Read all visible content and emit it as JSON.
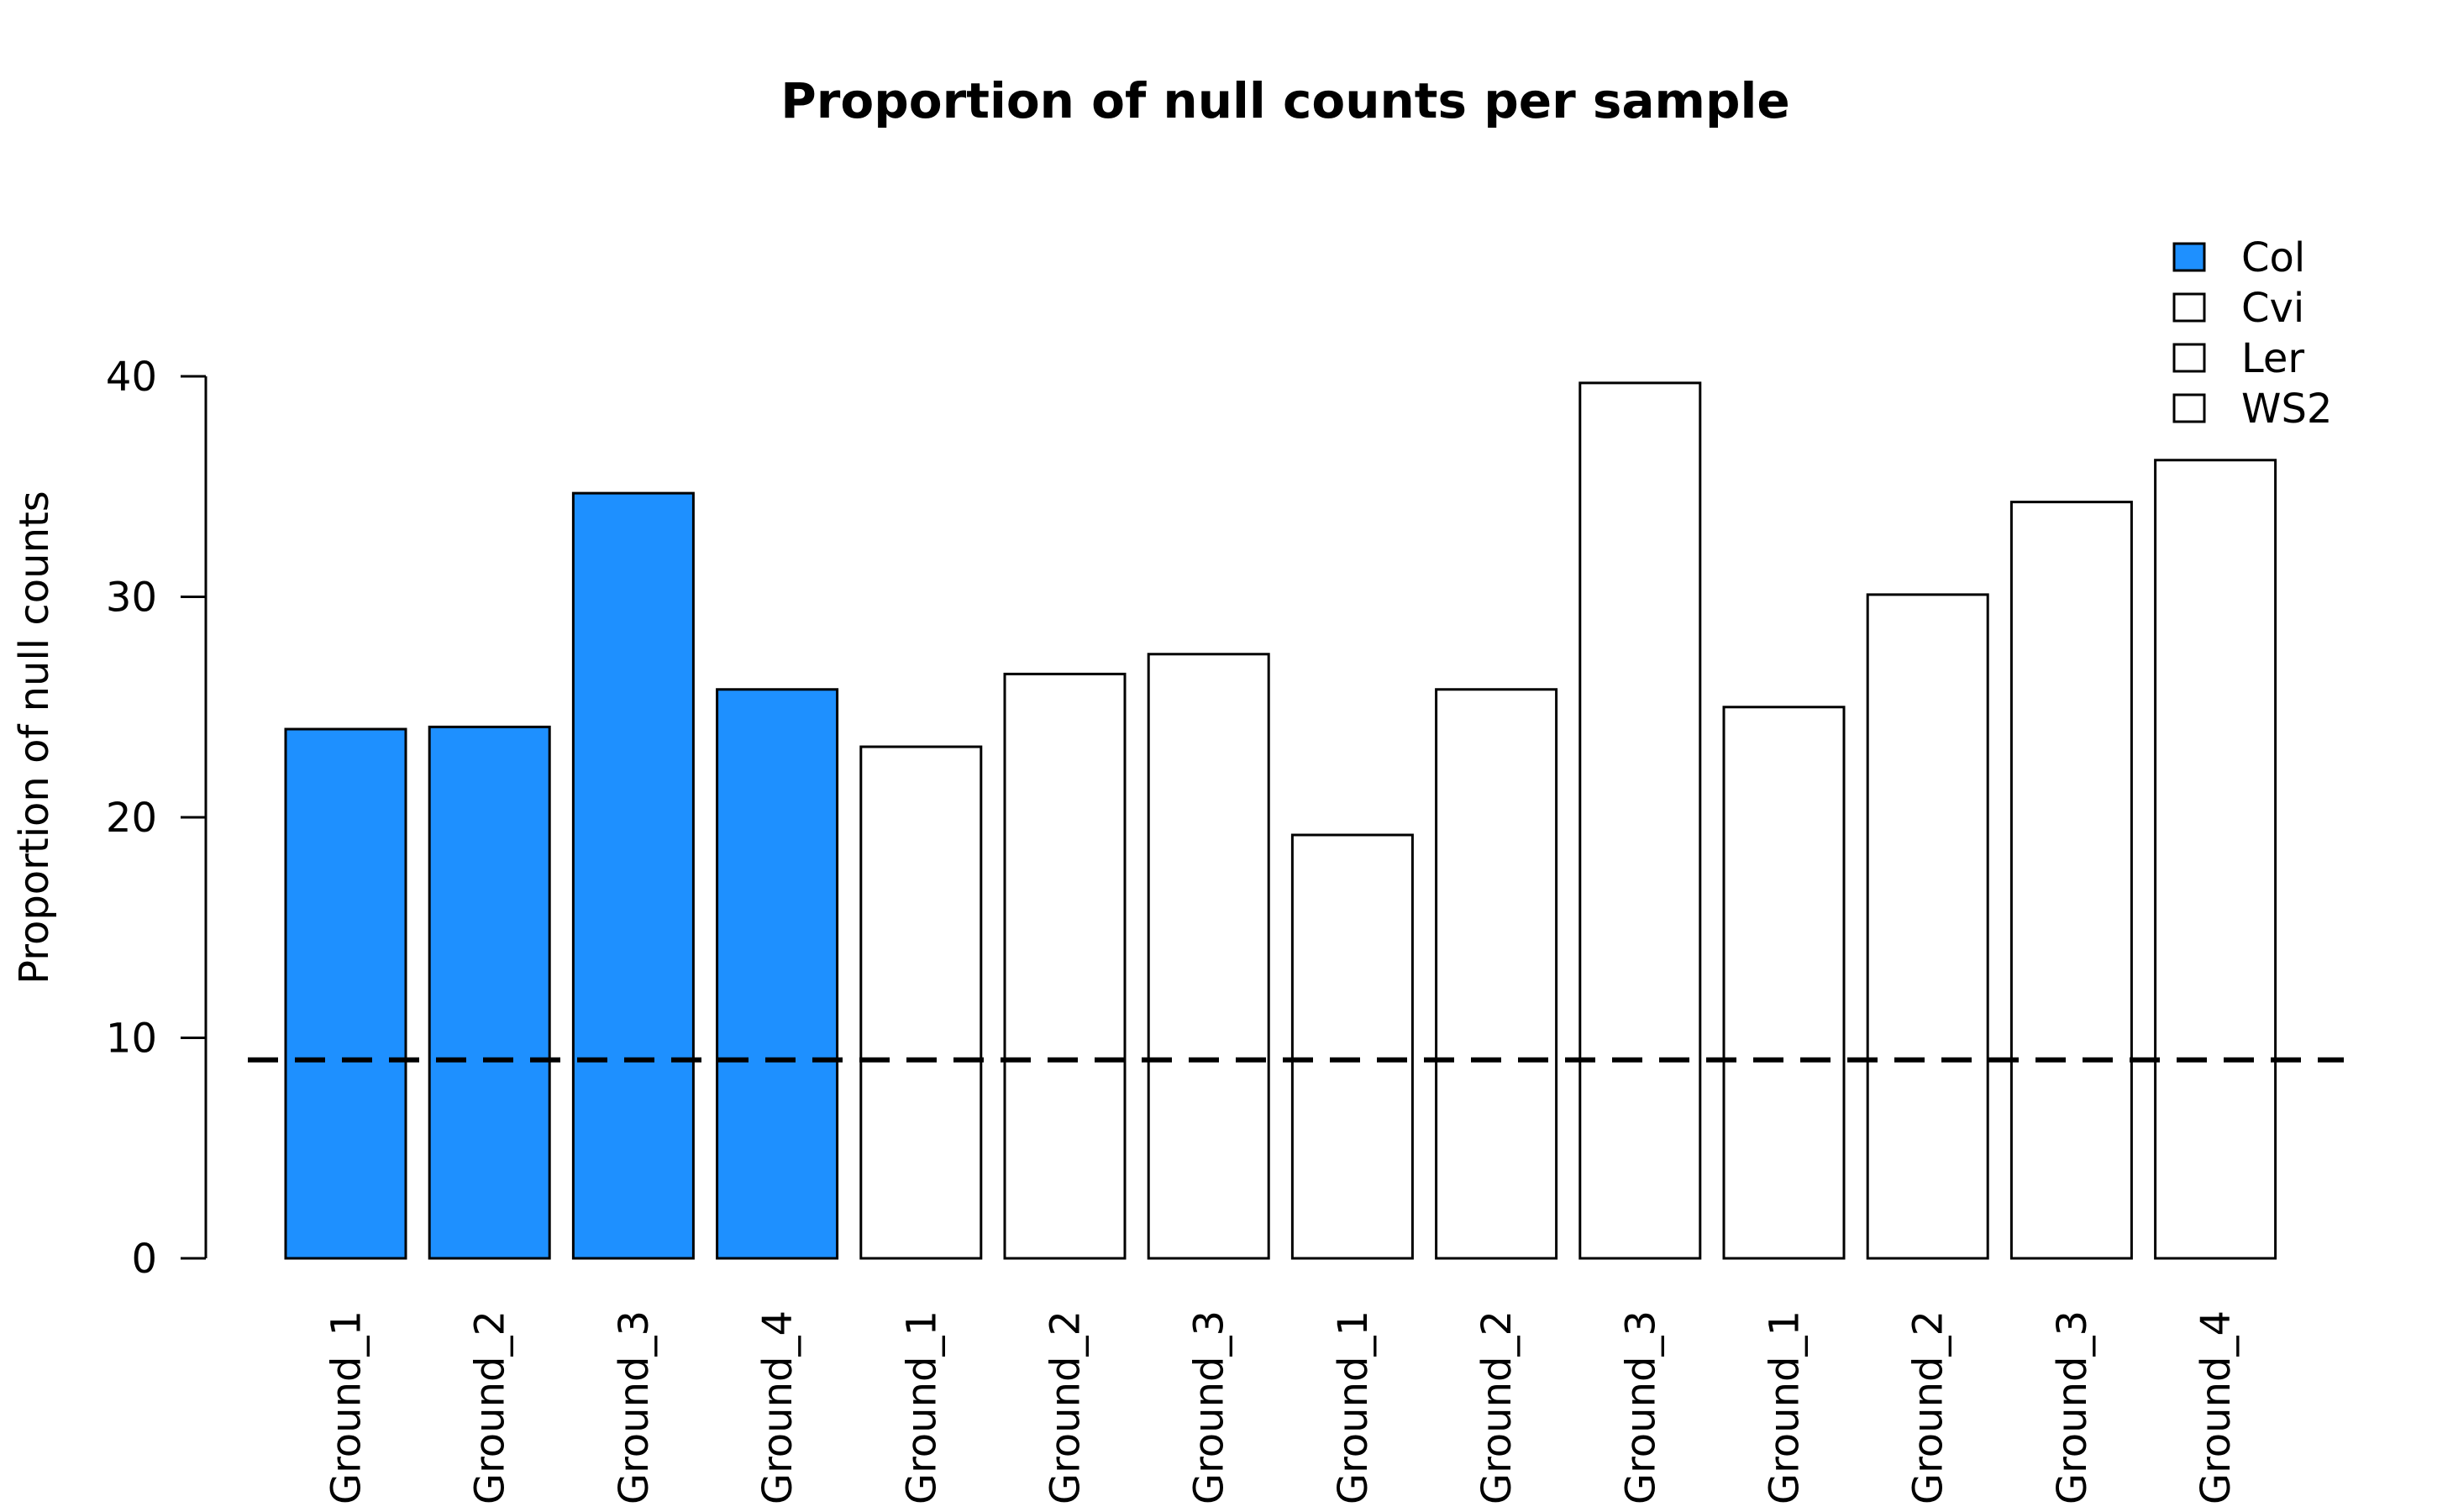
{
  "chart_data": {
    "type": "bar",
    "title": "Proportion of null counts per sample",
    "xlabel": "",
    "ylabel": "Proportion of null counts",
    "ylim": [
      0,
      40
    ],
    "yticks": [
      0,
      10,
      20,
      30,
      40
    ],
    "grid": false,
    "legend_position": "top-right",
    "categories": [
      "Ground_1",
      "Ground_2",
      "Ground_3",
      "Ground_4",
      "Ground_1",
      "Ground_2",
      "Ground_3",
      "Ground_1",
      "Ground_2",
      "Ground_3",
      "Ground_1",
      "Ground_2",
      "Ground_3",
      "Ground_4"
    ],
    "values": [
      24.0,
      24.1,
      34.7,
      25.8,
      23.2,
      26.5,
      27.4,
      19.2,
      25.8,
      39.7,
      25.0,
      30.1,
      34.3,
      36.2
    ],
    "groups": [
      "Col",
      "Col",
      "Col",
      "Col",
      "Cvi",
      "Cvi",
      "Cvi",
      "Ler",
      "Ler",
      "Ler",
      "WS2",
      "WS2",
      "WS2",
      "WS2"
    ],
    "legend": [
      {
        "name": "Col",
        "color": "#1E90FF"
      },
      {
        "name": "Cvi",
        "color": "#FFFFFF"
      },
      {
        "name": "Ler",
        "color": "#FFFFFF"
      },
      {
        "name": "WS2",
        "color": "#FFFFFF"
      }
    ],
    "threshold_line": {
      "value": 9,
      "style": "dashed",
      "color": "#000000"
    }
  }
}
